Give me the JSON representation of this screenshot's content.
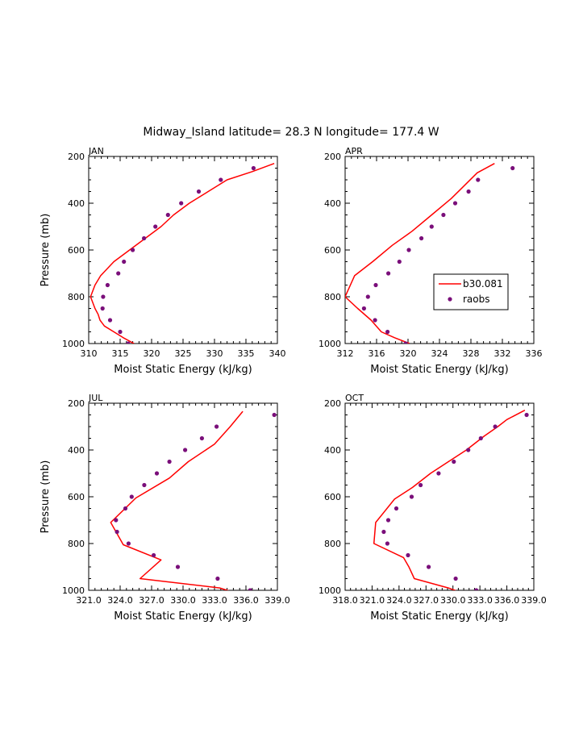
{
  "suptitle": "Midway_Island  latitude= 28.3 N longitude= 177.4 W",
  "legend": {
    "model_label": "b30.081",
    "obs_label": "raobs"
  },
  "colors": {
    "model": "#ff0000",
    "obs": "#7a0f7a",
    "axis": "#000000"
  },
  "chart_data": [
    {
      "type": "line",
      "panel": "JAN",
      "title": "JAN",
      "xlabel": "Moist Static Energy (kJ/kg)",
      "ylabel": "Pressure (mb)",
      "xlim": [
        310,
        340
      ],
      "ylim": [
        1000,
        200
      ],
      "xticks": [
        310,
        315,
        320,
        325,
        330,
        335,
        340
      ],
      "xtick_labels": [
        "310",
        "315",
        "320",
        "325",
        "330",
        "335",
        "340"
      ],
      "yticks": [
        200,
        400,
        600,
        800,
        1000
      ],
      "ytick_labels": [
        "200",
        "400",
        "600",
        "800",
        "1000"
      ],
      "series": [
        {
          "name": "b30.081",
          "kind": "line",
          "points": [
            [
              317.2,
              1000
            ],
            [
              315.5,
              975
            ],
            [
              314,
              950
            ],
            [
              312.5,
              925
            ],
            [
              311.8,
              900
            ],
            [
              311.5,
              875
            ],
            [
              311,
              850
            ],
            [
              310.3,
              800
            ],
            [
              311,
              750
            ],
            [
              311.9,
              710
            ],
            [
              314,
              650
            ],
            [
              316.5,
              600
            ],
            [
              319,
              550
            ],
            [
              321.5,
              500
            ],
            [
              323.5,
              450
            ],
            [
              326,
              400
            ],
            [
              329,
              350
            ],
            [
              332,
              300
            ],
            [
              336,
              265
            ],
            [
              339.5,
              230
            ]
          ]
        },
        {
          "name": "raobs",
          "kind": "scatter",
          "points": [
            [
              316.3,
              1000
            ],
            [
              315,
              950
            ],
            [
              313.4,
              900
            ],
            [
              312.2,
              850
            ],
            [
              312.3,
              800
            ],
            [
              313,
              750
            ],
            [
              314.7,
              700
            ],
            [
              315.6,
              650
            ],
            [
              317,
              600
            ],
            [
              318.8,
              550
            ],
            [
              320.6,
              500
            ],
            [
              322.6,
              450
            ],
            [
              324.7,
              400
            ],
            [
              327.5,
              350
            ],
            [
              331,
              300
            ],
            [
              336.2,
              250
            ]
          ]
        }
      ]
    },
    {
      "type": "line",
      "panel": "APR",
      "title": "APR",
      "xlabel": "Moist Static Energy (kJ/kg)",
      "ylabel": "",
      "xlim": [
        312,
        336
      ],
      "ylim": [
        1000,
        200
      ],
      "xticks": [
        312,
        316,
        320,
        324,
        328,
        332,
        336
      ],
      "xtick_labels": [
        "312",
        "316",
        "320",
        "324",
        "328",
        "332",
        "336"
      ],
      "yticks": [
        200,
        400,
        600,
        800,
        1000
      ],
      "ytick_labels": [
        "200",
        "400",
        "600",
        "800",
        "1000"
      ],
      "legend_position": "center-right",
      "series": [
        {
          "name": "b30.081",
          "kind": "line",
          "points": [
            [
              320.2,
              1000
            ],
            [
              318.3,
              975
            ],
            [
              316.6,
              950
            ],
            [
              315.3,
              900
            ],
            [
              313.6,
              850
            ],
            [
              312,
              800
            ],
            [
              313.2,
              710
            ],
            [
              315.5,
              650
            ],
            [
              318,
              580
            ],
            [
              320.5,
              520
            ],
            [
              323,
              450
            ],
            [
              325.5,
              380
            ],
            [
              327,
              330
            ],
            [
              328.8,
              270
            ],
            [
              331,
              230
            ]
          ]
        },
        {
          "name": "raobs",
          "kind": "scatter",
          "points": [
            [
              319.7,
              1000
            ],
            [
              317.4,
              950
            ],
            [
              315.8,
              900
            ],
            [
              314.4,
              850
            ],
            [
              314.9,
              800
            ],
            [
              315.9,
              750
            ],
            [
              317.5,
              700
            ],
            [
              318.9,
              650
            ],
            [
              320.1,
              600
            ],
            [
              321.7,
              550
            ],
            [
              323,
              500
            ],
            [
              324.5,
              450
            ],
            [
              326,
              400
            ],
            [
              327.7,
              350
            ],
            [
              328.9,
              300
            ],
            [
              333.3,
              250
            ]
          ]
        }
      ]
    },
    {
      "type": "line",
      "panel": "JUL",
      "title": "JUL",
      "xlabel": "Moist Static Energy (kJ/kg)",
      "ylabel": "Pressure (mb)",
      "xlim": [
        321,
        339
      ],
      "ylim": [
        1000,
        200
      ],
      "xticks": [
        321,
        324,
        327,
        330,
        333,
        336,
        339
      ],
      "xtick_labels": [
        "321.0",
        "324.0",
        "327.0",
        "330.0",
        "333.0",
        "336.0",
        "339.0"
      ],
      "yticks": [
        200,
        400,
        600,
        800,
        1000
      ],
      "ytick_labels": [
        "200",
        "400",
        "600",
        "800",
        "1000"
      ],
      "series": [
        {
          "name": "b30.081",
          "kind": "line",
          "points": [
            [
              335.3,
              1015
            ],
            [
              333.5,
              990
            ],
            [
              325.9,
              950
            ],
            [
              327.9,
              870
            ],
            [
              324.3,
              805
            ],
            [
              323.1,
              710
            ],
            [
              325.5,
              605
            ],
            [
              328.7,
              520
            ],
            [
              330.5,
              450
            ],
            [
              333,
              375
            ],
            [
              334.5,
              300
            ],
            [
              335.7,
              235
            ]
          ]
        },
        {
          "name": "raobs",
          "kind": "scatter",
          "points": [
            [
              336.4,
              1000
            ],
            [
              333.3,
              950
            ],
            [
              329.5,
              900
            ],
            [
              327.2,
              850
            ],
            [
              324.8,
              800
            ],
            [
              323.7,
              750
            ],
            [
              323.6,
              700
            ],
            [
              324.5,
              650
            ],
            [
              325.1,
              600
            ],
            [
              326.3,
              550
            ],
            [
              327.5,
              500
            ],
            [
              328.7,
              450
            ],
            [
              330.2,
              400
            ],
            [
              331.8,
              350
            ],
            [
              333.2,
              300
            ],
            [
              338.7,
              250
            ]
          ]
        }
      ]
    },
    {
      "type": "line",
      "panel": "OCT",
      "title": "OCT",
      "xlabel": "Moist Static Energy (kJ/kg)",
      "ylabel": "",
      "xlim": [
        318,
        339
      ],
      "ylim": [
        1000,
        200
      ],
      "xticks": [
        318,
        321,
        324,
        327,
        330,
        333,
        336,
        339
      ],
      "xtick_labels": [
        "318.0",
        "321.0",
        "324.0",
        "327.0",
        "330.0",
        "333.0",
        "336.0",
        "339.0"
      ],
      "yticks": [
        200,
        400,
        600,
        800,
        1000
      ],
      "ytick_labels": [
        "200",
        "400",
        "600",
        "800",
        "1000"
      ],
      "series": [
        {
          "name": "b30.081",
          "kind": "line",
          "points": [
            [
              331.3,
              1015
            ],
            [
              329.5,
              990
            ],
            [
              325.7,
              950
            ],
            [
              325.1,
              900
            ],
            [
              324.5,
              860
            ],
            [
              321.2,
              800
            ],
            [
              321.4,
              710
            ],
            [
              323.5,
              610
            ],
            [
              325.5,
              560
            ],
            [
              327.5,
              500
            ],
            [
              329.5,
              450
            ],
            [
              331.5,
              400
            ],
            [
              333.5,
              340
            ],
            [
              335,
              300
            ],
            [
              336,
              270
            ],
            [
              338,
              230
            ]
          ]
        },
        {
          "name": "raobs",
          "kind": "scatter",
          "points": [
            [
              332.6,
              1000
            ],
            [
              330.3,
              950
            ],
            [
              327.3,
              900
            ],
            [
              325,
              850
            ],
            [
              322.7,
              800
            ],
            [
              322.3,
              750
            ],
            [
              322.8,
              700
            ],
            [
              323.7,
              650
            ],
            [
              325.4,
              600
            ],
            [
              326.4,
              550
            ],
            [
              328.4,
              500
            ],
            [
              330.1,
              450
            ],
            [
              331.7,
              400
            ],
            [
              333.1,
              350
            ],
            [
              334.7,
              300
            ],
            [
              338.2,
              250
            ]
          ]
        }
      ]
    }
  ]
}
